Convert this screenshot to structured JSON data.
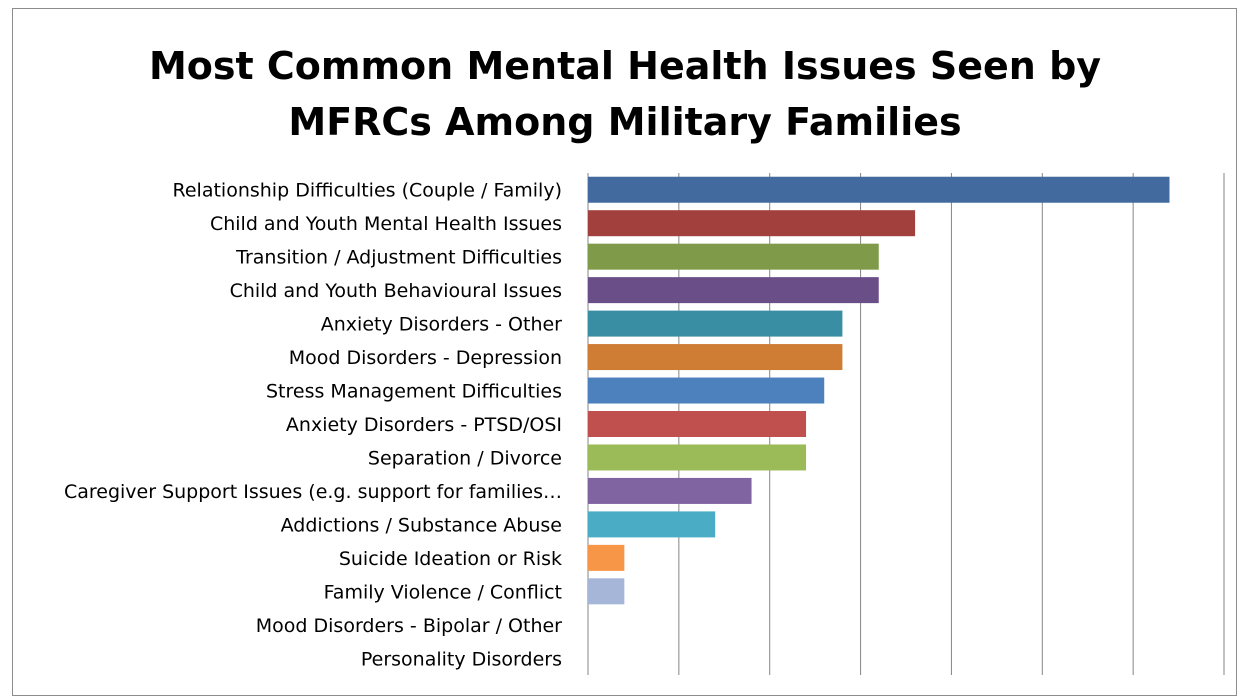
{
  "chart_data": {
    "type": "bar",
    "orientation": "horizontal",
    "title_lines": [
      "Most Common Mental Health Issues Seen by",
      "MFRCs Among Military Families"
    ],
    "categories": [
      "Relationship Difficulties (Couple / Family)",
      "Child and Youth Mental Health Issues",
      "Transition / Adjustment Difficulties",
      "Child and Youth Behavioural Issues",
      "Anxiety Disorders - Other",
      "Mood Disorders - Depression",
      "Stress Management Difficulties",
      "Anxiety Disorders - PTSD/OSI",
      "Separation / Divorce",
      "Caregiver Support Issues (e.g. support for families…",
      "Addictions / Substance Abuse",
      "Suicide Ideation or Risk",
      "Family Violence / Conflict",
      "Mood Disorders - Bipolar / Other",
      "Personality Disorders"
    ],
    "values": [
      32,
      18,
      16,
      16,
      14,
      14,
      13,
      12,
      12,
      9,
      7,
      2,
      2,
      0,
      0
    ],
    "colors": [
      "#426a9e",
      "#a1403d",
      "#7f9a48",
      "#694e88",
      "#3a8ea3",
      "#cf7c35",
      "#4d81be",
      "#c0504d",
      "#9bbb59",
      "#8064a2",
      "#4bacc6",
      "#f79646",
      "#a5b6d8",
      "#426a9e",
      "#a1403d"
    ],
    "xlim": [
      0,
      35
    ],
    "x_grid_step": 5,
    "grid": "vertical",
    "legend": "none"
  }
}
